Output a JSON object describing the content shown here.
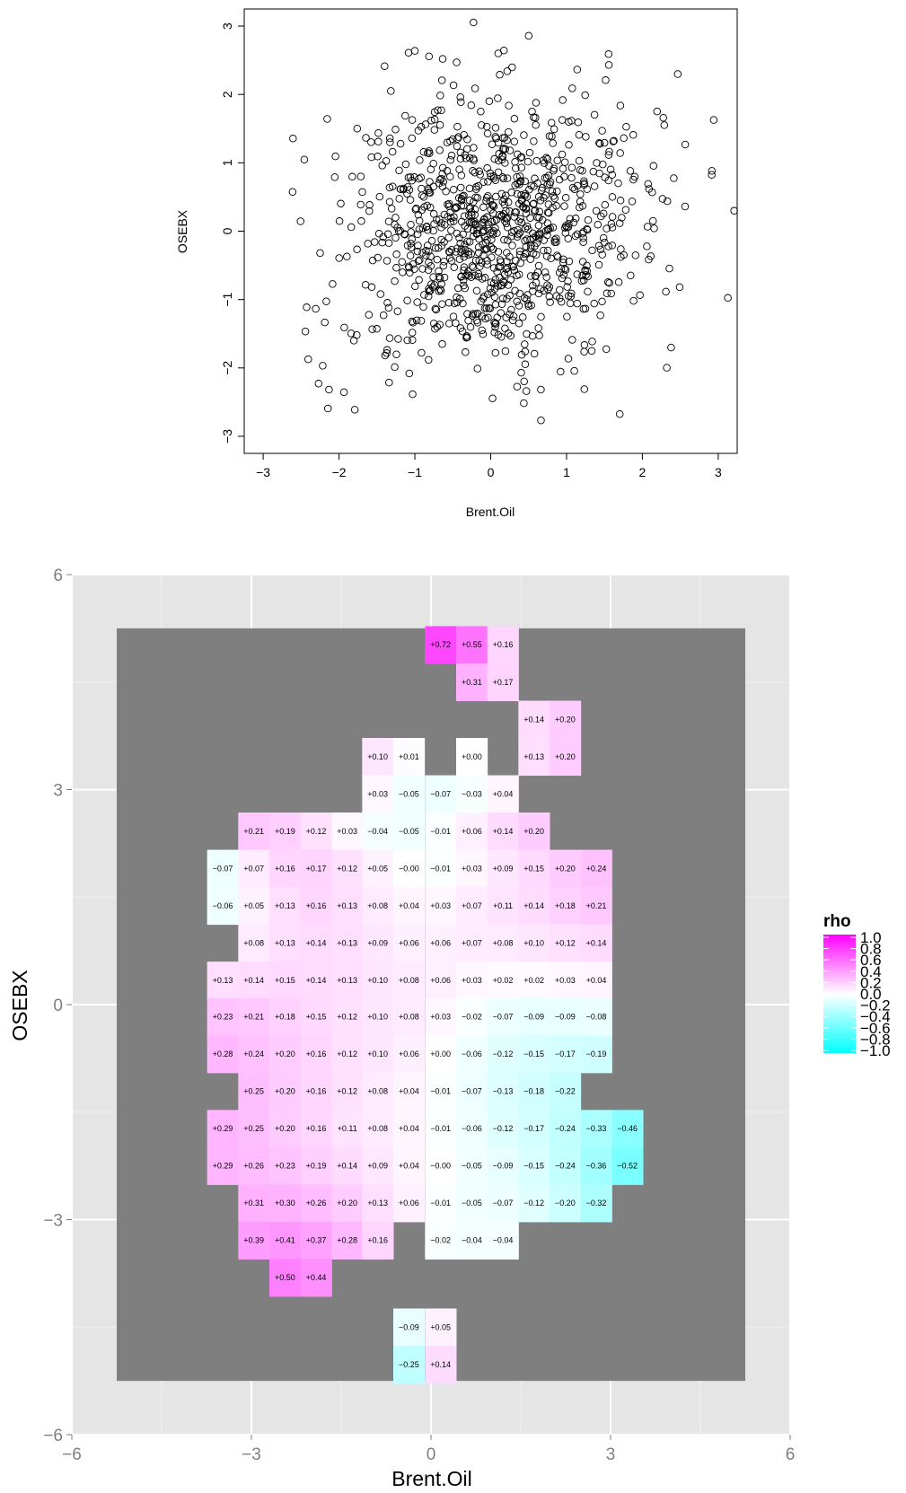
{
  "scatter": {
    "xlabel": "Brent.Oil",
    "ylabel": "OSEBX",
    "x_ticks": [
      "−3",
      "−2",
      "−1",
      "0",
      "1",
      "2",
      "3"
    ],
    "y_ticks": [
      "−3",
      "−2",
      "−1",
      "0",
      "1",
      "2",
      "3"
    ]
  },
  "heatmap": {
    "xlabel": "Brent.Oil",
    "ylabel": "OSEBX",
    "x_ticks": [
      "−6",
      "−3",
      "0",
      "3",
      "6"
    ],
    "y_ticks": [
      "−6",
      "−3",
      "0",
      "3",
      "6"
    ],
    "legend": {
      "title": "rho",
      "labels": [
        "1.0",
        "0.8",
        "0.6",
        "0.4",
        "0.2",
        "0.0",
        "−0.2",
        "−0.4",
        "−0.6",
        "−0.8",
        "−1.0"
      ]
    }
  },
  "colors": {
    "panel_bg": "#e5e5e5",
    "grid_major": "#ffffff",
    "grid_minor": "#f2f2f2",
    "missing_cell": "#7f7f7f",
    "rho_positive": "#ff00ff",
    "rho_zero": "#ffffff",
    "rho_negative": "#00ffff"
  },
  "chart_data": [
    {
      "type": "scatter",
      "xlabel": "Brent.Oil",
      "ylabel": "OSEBX",
      "xlim": [
        -3.25,
        3.25
      ],
      "ylim": [
        -3.25,
        3.25
      ],
      "n_points": 1000,
      "description_of_points": "approximately 1000 open-circle points, roughly standard bivariate normal with weak positive correlation"
    },
    {
      "type": "heatmap",
      "xlabel": "Brent.Oil",
      "ylabel": "OSEBX",
      "xlim": [
        -6,
        6
      ],
      "ylim": [
        -6,
        6
      ],
      "cell_size": 0.52,
      "grey_region": {
        "x": [
          -5.25,
          5.25
        ],
        "y": [
          -5.25,
          5.25
        ]
      },
      "legend_title": "rho",
      "legend_range": [
        -1,
        1
      ],
      "rows": [
        {
          "y": 5.02,
          "cells": [
            [
              0.16,
              0.72
            ],
            [
              0.68,
              0.55
            ],
            [
              1.2,
              0.16
            ]
          ]
        },
        {
          "y": 4.5,
          "cells": [
            [
              0.68,
              0.31
            ],
            [
              1.2,
              0.17
            ]
          ]
        },
        {
          "y": 3.98,
          "cells": [
            [
              1.72,
              0.14
            ],
            [
              2.24,
              0.2
            ]
          ]
        },
        {
          "y": 3.46,
          "cells": [
            [
              -0.89,
              0.1
            ],
            [
              -0.37,
              0.01
            ],
            [
              0.68,
              0.0
            ],
            [
              1.72,
              0.13
            ],
            [
              2.24,
              0.2
            ]
          ]
        },
        {
          "y": 2.94,
          "cells": [
            [
              -0.89,
              0.03
            ],
            [
              -0.37,
              -0.05
            ],
            [
              0.16,
              -0.07
            ],
            [
              0.68,
              -0.03
            ],
            [
              1.2,
              0.04
            ]
          ]
        },
        {
          "y": 2.42,
          "cells": [
            [
              -2.96,
              0.21
            ],
            [
              -2.44,
              0.19
            ],
            [
              -1.92,
              0.12
            ],
            [
              -1.4,
              0.03
            ],
            [
              -0.89,
              -0.04
            ],
            [
              -0.37,
              -0.05
            ],
            [
              0.16,
              -0.01
            ],
            [
              0.68,
              0.06
            ],
            [
              1.2,
              0.14
            ],
            [
              1.72,
              0.2
            ]
          ]
        },
        {
          "y": 1.9,
          "cells": [
            [
              -3.48,
              -0.07
            ],
            [
              -2.96,
              0.07
            ],
            [
              -2.44,
              0.16
            ],
            [
              -1.92,
              0.17
            ],
            [
              -1.4,
              0.12
            ],
            [
              -0.89,
              0.05
            ],
            [
              -0.37,
              -0.0
            ],
            [
              0.16,
              -0.01
            ],
            [
              0.68,
              0.03
            ],
            [
              1.2,
              0.09
            ],
            [
              1.72,
              0.15
            ],
            [
              2.24,
              0.2
            ],
            [
              2.76,
              0.24
            ]
          ]
        },
        {
          "y": 1.38,
          "cells": [
            [
              -3.48,
              -0.06
            ],
            [
              -2.96,
              0.05
            ],
            [
              -2.44,
              0.13
            ],
            [
              -1.92,
              0.16
            ],
            [
              -1.4,
              0.13
            ],
            [
              -0.89,
              0.08
            ],
            [
              -0.37,
              0.04
            ],
            [
              0.16,
              0.03
            ],
            [
              0.68,
              0.07
            ],
            [
              1.2,
              0.11
            ],
            [
              1.72,
              0.14
            ],
            [
              2.24,
              0.18
            ],
            [
              2.76,
              0.21
            ]
          ]
        },
        {
          "y": 0.86,
          "cells": [
            [
              -2.96,
              0.08
            ],
            [
              -2.44,
              0.13
            ],
            [
              -1.92,
              0.14
            ],
            [
              -1.4,
              0.13
            ],
            [
              -0.89,
              0.09
            ],
            [
              -0.37,
              0.06
            ],
            [
              0.16,
              0.06
            ],
            [
              0.68,
              0.07
            ],
            [
              1.2,
              0.08
            ],
            [
              1.72,
              0.1
            ],
            [
              2.24,
              0.12
            ],
            [
              2.76,
              0.14
            ]
          ]
        },
        {
          "y": 0.34,
          "cells": [
            [
              -3.48,
              0.13
            ],
            [
              -2.96,
              0.14
            ],
            [
              -2.44,
              0.15
            ],
            [
              -1.92,
              0.14
            ],
            [
              -1.4,
              0.13
            ],
            [
              -0.89,
              0.1
            ],
            [
              -0.37,
              0.08
            ],
            [
              0.16,
              0.06
            ],
            [
              0.68,
              0.03
            ],
            [
              1.2,
              0.02
            ],
            [
              1.72,
              0.02
            ],
            [
              2.24,
              0.03
            ],
            [
              2.76,
              0.04
            ]
          ]
        },
        {
          "y": -0.17,
          "cells": [
            [
              -3.48,
              0.23
            ],
            [
              -2.96,
              0.21
            ],
            [
              -2.44,
              0.18
            ],
            [
              -1.92,
              0.15
            ],
            [
              -1.4,
              0.12
            ],
            [
              -0.89,
              0.1
            ],
            [
              -0.37,
              0.08
            ],
            [
              0.16,
              0.03
            ],
            [
              0.68,
              -0.02
            ],
            [
              1.2,
              -0.07
            ],
            [
              1.72,
              -0.09
            ],
            [
              2.24,
              -0.09
            ],
            [
              2.76,
              -0.08
            ]
          ]
        },
        {
          "y": -0.69,
          "cells": [
            [
              -3.48,
              0.28
            ],
            [
              -2.96,
              0.24
            ],
            [
              -2.44,
              0.2
            ],
            [
              -1.92,
              0.16
            ],
            [
              -1.4,
              0.12
            ],
            [
              -0.89,
              0.1
            ],
            [
              -0.37,
              0.06
            ],
            [
              0.16,
              0.0
            ],
            [
              0.68,
              -0.06
            ],
            [
              1.2,
              -0.12
            ],
            [
              1.72,
              -0.15
            ],
            [
              2.24,
              -0.17
            ],
            [
              2.76,
              -0.19
            ]
          ]
        },
        {
          "y": -1.21,
          "cells": [
            [
              -2.96,
              0.25
            ],
            [
              -2.44,
              0.2
            ],
            [
              -1.92,
              0.16
            ],
            [
              -1.4,
              0.12
            ],
            [
              -0.89,
              0.08
            ],
            [
              -0.37,
              0.04
            ],
            [
              0.16,
              -0.01
            ],
            [
              0.68,
              -0.07
            ],
            [
              1.2,
              -0.13
            ],
            [
              1.72,
              -0.18
            ],
            [
              2.24,
              -0.22
            ]
          ]
        },
        {
          "y": -1.73,
          "cells": [
            [
              -3.48,
              0.29
            ],
            [
              -2.96,
              0.25
            ],
            [
              -2.44,
              0.2
            ],
            [
              -1.92,
              0.16
            ],
            [
              -1.4,
              0.11
            ],
            [
              -0.89,
              0.08
            ],
            [
              -0.37,
              0.04
            ],
            [
              0.16,
              -0.01
            ],
            [
              0.68,
              -0.06
            ],
            [
              1.2,
              -0.12
            ],
            [
              1.72,
              -0.17
            ],
            [
              2.24,
              -0.24
            ],
            [
              2.76,
              -0.33
            ],
            [
              3.28,
              -0.46
            ]
          ]
        },
        {
          "y": -2.25,
          "cells": [
            [
              -3.48,
              0.29
            ],
            [
              -2.96,
              0.26
            ],
            [
              -2.44,
              0.23
            ],
            [
              -1.92,
              0.19
            ],
            [
              -1.4,
              0.14
            ],
            [
              -0.89,
              0.09
            ],
            [
              -0.37,
              0.04
            ],
            [
              0.16,
              -0.0
            ],
            [
              0.68,
              -0.05
            ],
            [
              1.2,
              -0.09
            ],
            [
              1.72,
              -0.15
            ],
            [
              2.24,
              -0.24
            ],
            [
              2.76,
              -0.36
            ],
            [
              3.28,
              -0.52
            ]
          ]
        },
        {
          "y": -2.77,
          "cells": [
            [
              -2.96,
              0.31
            ],
            [
              -2.44,
              0.3
            ],
            [
              -1.92,
              0.26
            ],
            [
              -1.4,
              0.2
            ],
            [
              -0.89,
              0.13
            ],
            [
              -0.37,
              0.06
            ],
            [
              0.16,
              -0.01
            ],
            [
              0.68,
              -0.05
            ],
            [
              1.2,
              -0.07
            ],
            [
              1.72,
              -0.12
            ],
            [
              2.24,
              -0.2
            ],
            [
              2.76,
              -0.32
            ]
          ]
        },
        {
          "y": -3.29,
          "cells": [
            [
              -2.96,
              0.39
            ],
            [
              -2.44,
              0.41
            ],
            [
              -1.92,
              0.37
            ],
            [
              -1.4,
              0.28
            ],
            [
              -0.89,
              0.16
            ],
            [
              0.16,
              -0.02
            ],
            [
              0.68,
              -0.04
            ],
            [
              1.2,
              -0.04
            ]
          ]
        },
        {
          "y": -3.81,
          "cells": [
            [
              -2.44,
              0.5
            ],
            [
              -1.92,
              0.44
            ]
          ]
        },
        {
          "y": -4.5,
          "cells": [
            [
              -0.37,
              -0.09
            ],
            [
              0.16,
              0.05
            ]
          ]
        },
        {
          "y": -5.02,
          "cells": [
            [
              -0.37,
              -0.25
            ],
            [
              0.16,
              0.14
            ]
          ]
        }
      ]
    }
  ]
}
